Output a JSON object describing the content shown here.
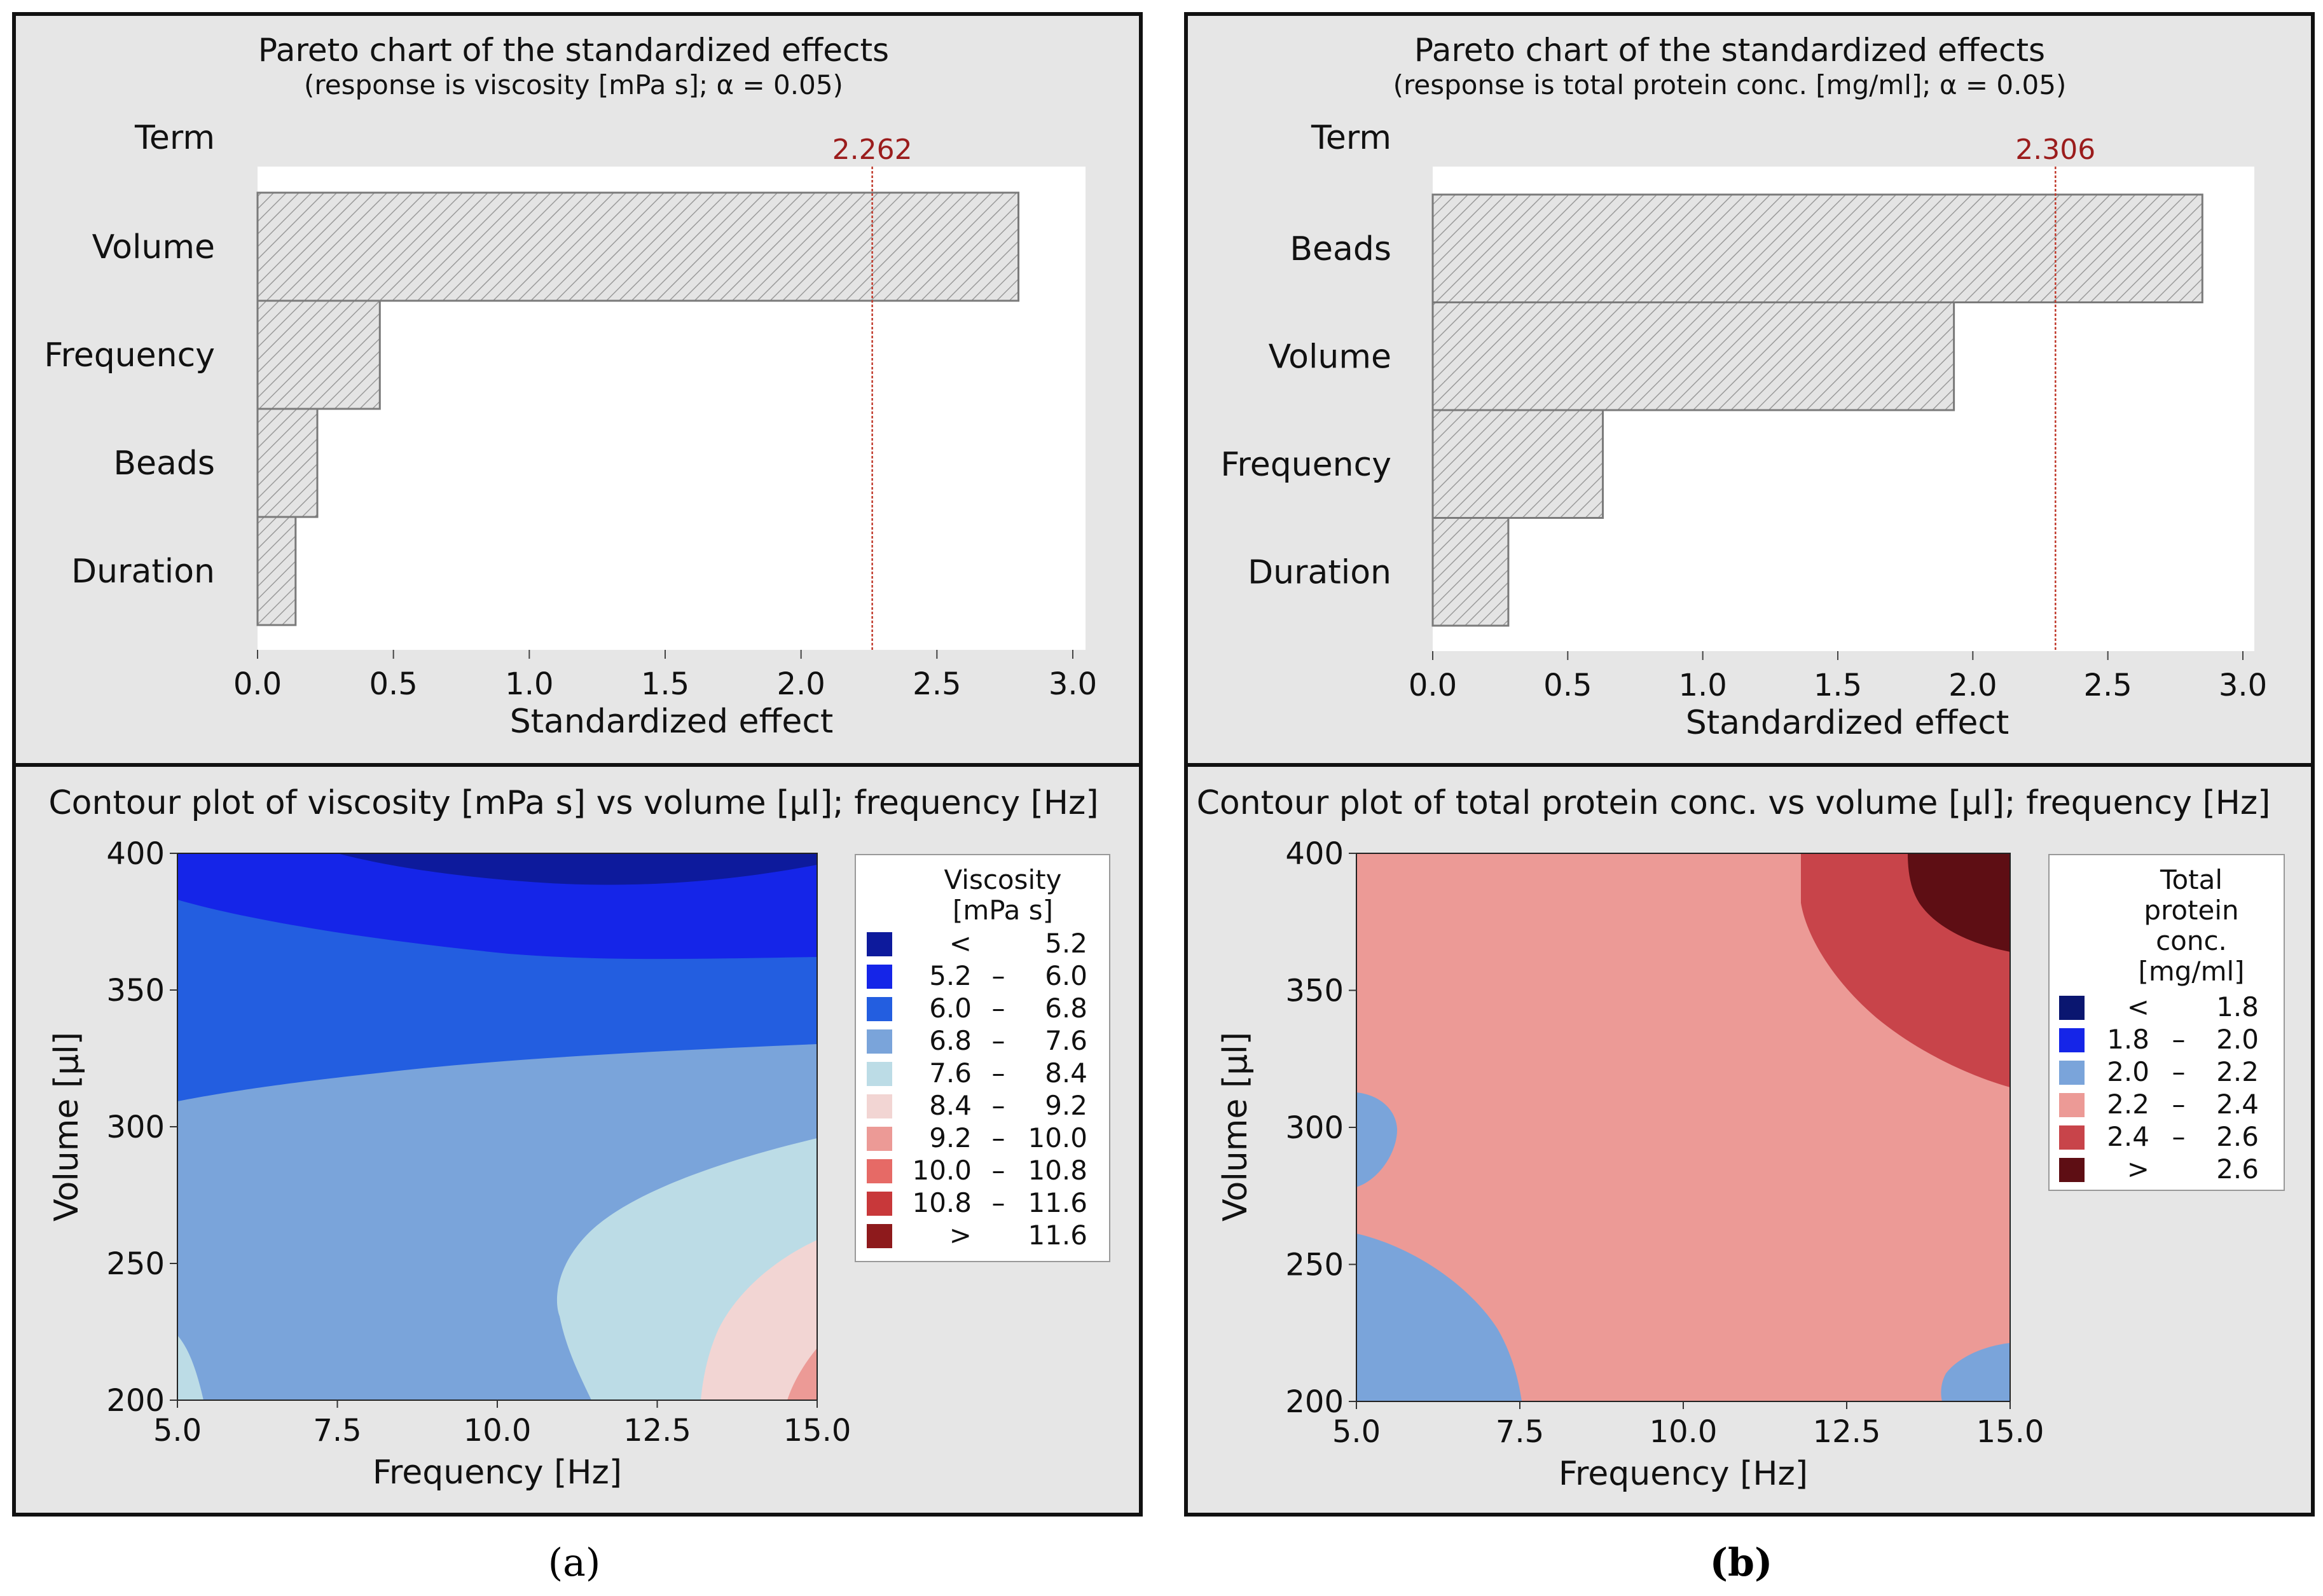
{
  "chart_data": [
    {
      "type": "bar",
      "orientation": "horizontal",
      "panel": "a",
      "title": "Pareto chart of the standardized effects",
      "subtitle": "(response is viscosity [mPa s]; α = 0.05)",
      "term_label": "Term",
      "categories": [
        "Volume",
        "Frequency",
        "Beads",
        "Duration"
      ],
      "values": [
        2.8,
        0.45,
        0.22,
        0.14
      ],
      "reference_value": 2.262,
      "reference_label": "2.262",
      "xlabel": "Standardized effect",
      "xlim": [
        0,
        3.0
      ],
      "xticks": [
        "0.0",
        "0.5",
        "1.0",
        "1.5",
        "2.0",
        "2.5",
        "3.0"
      ]
    },
    {
      "type": "bar",
      "orientation": "horizontal",
      "panel": "b",
      "title": "Pareto chart of the standardized effects",
      "subtitle": "(response is total protein conc. [mg/ml]; α = 0.05)",
      "term_label": "Term",
      "categories": [
        "Beads",
        "Volume",
        "Frequency",
        "Duration"
      ],
      "values": [
        2.85,
        1.93,
        0.63,
        0.28
      ],
      "reference_value": 2.306,
      "reference_label": "2.306",
      "xlabel": "Standardized effect",
      "xlim": [
        0,
        3.0
      ],
      "xticks": [
        "0.0",
        "0.5",
        "1.0",
        "1.5",
        "2.0",
        "2.5",
        "3.0"
      ]
    },
    {
      "type": "contour",
      "panel": "a",
      "title": "Contour plot of viscosity [mPa s] vs volume [µl]; frequency [Hz]",
      "xlabel": "Frequency [Hz]",
      "ylabel": "Volume [µl]",
      "xlim": [
        5.0,
        15.0
      ],
      "ylim": [
        200,
        400
      ],
      "xticks": [
        "5.0",
        "7.5",
        "10.0",
        "12.5",
        "15.0"
      ],
      "yticks": [
        "400",
        "350",
        "300",
        "250",
        "200"
      ],
      "legend_title": [
        "Viscosity",
        "[mPa s]"
      ],
      "legend": [
        {
          "lo": "<",
          "dash": "",
          "hi": "5.2",
          "color": "#0d1a9c"
        },
        {
          "lo": "5.2",
          "dash": "–",
          "hi": "6.0",
          "color": "#1525e8"
        },
        {
          "lo": "6.0",
          "dash": "–",
          "hi": "6.8",
          "color": "#235ee0"
        },
        {
          "lo": "6.8",
          "dash": "–",
          "hi": "7.6",
          "color": "#7aa4da"
        },
        {
          "lo": "7.6",
          "dash": "–",
          "hi": "8.4",
          "color": "#bcdce6"
        },
        {
          "lo": "8.4",
          "dash": "–",
          "hi": "9.2",
          "color": "#f2d5d3"
        },
        {
          "lo": "9.2",
          "dash": "–",
          "hi": "10.0",
          "color": "#ec9a96"
        },
        {
          "lo": "10.0",
          "dash": "–",
          "hi": "10.8",
          "color": "#e66a66"
        },
        {
          "lo": "10.8",
          "dash": "–",
          "hi": "11.6",
          "color": "#c8383a"
        },
        {
          "lo": ">",
          "dash": "",
          "hi": "11.6",
          "color": "#8e1a1c"
        }
      ]
    },
    {
      "type": "contour",
      "panel": "b",
      "title": "Contour plot of total protein conc. vs volume [µl]; frequency [Hz]",
      "xlabel": "Frequency [Hz]",
      "ylabel": "Volume [µl]",
      "xlim": [
        5.0,
        15.0
      ],
      "ylim": [
        200,
        400
      ],
      "xticks": [
        "5.0",
        "7.5",
        "10.0",
        "12.5",
        "15.0"
      ],
      "yticks": [
        "400",
        "350",
        "300",
        "250",
        "200"
      ],
      "legend_title": [
        "Total",
        "protein",
        "conc.",
        "[mg/ml]"
      ],
      "legend": [
        {
          "lo": "<",
          "dash": "",
          "hi": "1.8",
          "color": "#0a1670"
        },
        {
          "lo": "1.8",
          "dash": "–",
          "hi": "2.0",
          "color": "#1525e8"
        },
        {
          "lo": "2.0",
          "dash": "–",
          "hi": "2.2",
          "color": "#7aa4da"
        },
        {
          "lo": "2.2",
          "dash": "–",
          "hi": "2.4",
          "color": "#ec9a96"
        },
        {
          "lo": "2.4",
          "dash": "–",
          "hi": "2.6",
          "color": "#c8444a"
        },
        {
          "lo": ">",
          "dash": "",
          "hi": "2.6",
          "color": "#5e0e14"
        }
      ]
    }
  ],
  "captions": [
    "(a)",
    "(b)"
  ],
  "colors": {
    "panel_background": "#e6e6e6",
    "plot_background": "#ffffff",
    "reference_line": "#c0392b",
    "reference_label": "#9b1c1c",
    "bar_fill": "#e2e2e2",
    "bar_stroke": "#7a7a7a"
  }
}
